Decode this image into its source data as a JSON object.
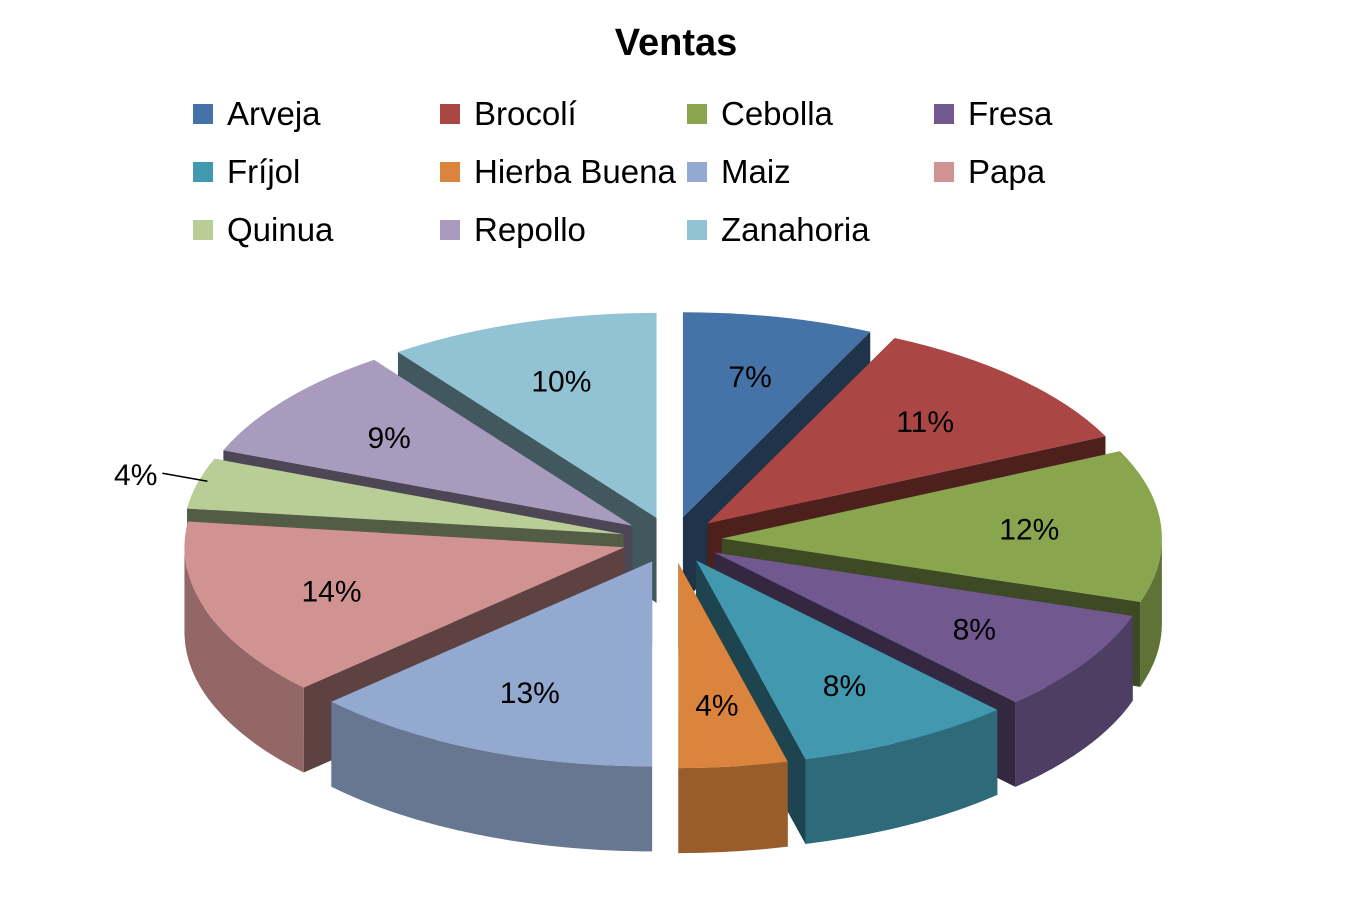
{
  "chart_data": {
    "type": "pie",
    "title": "Ventas",
    "legend_position": "top",
    "categories": [
      "Arveja",
      "Brocolí",
      "Cebolla",
      "Fresa",
      "Fríjol",
      "Hierba Buena",
      "Maiz",
      "Papa",
      "Quinua",
      "Repollo",
      "Zanahoria"
    ],
    "values": [
      7,
      11,
      12,
      8,
      8,
      4,
      13,
      14,
      4,
      9,
      10
    ],
    "labels": [
      "7%",
      "11%",
      "12%",
      "8%",
      "8%",
      "4%",
      "13%",
      "14%",
      "4%",
      "9%",
      "10%"
    ],
    "colors": [
      "#4572A7",
      "#AA4643",
      "#89A54E",
      "#71588F",
      "#4198AF",
      "#DB843D",
      "#93A9CF",
      "#D19392",
      "#B9CD96",
      "#A99BBD",
      "#92C3D4"
    ],
    "exploded": true
  }
}
